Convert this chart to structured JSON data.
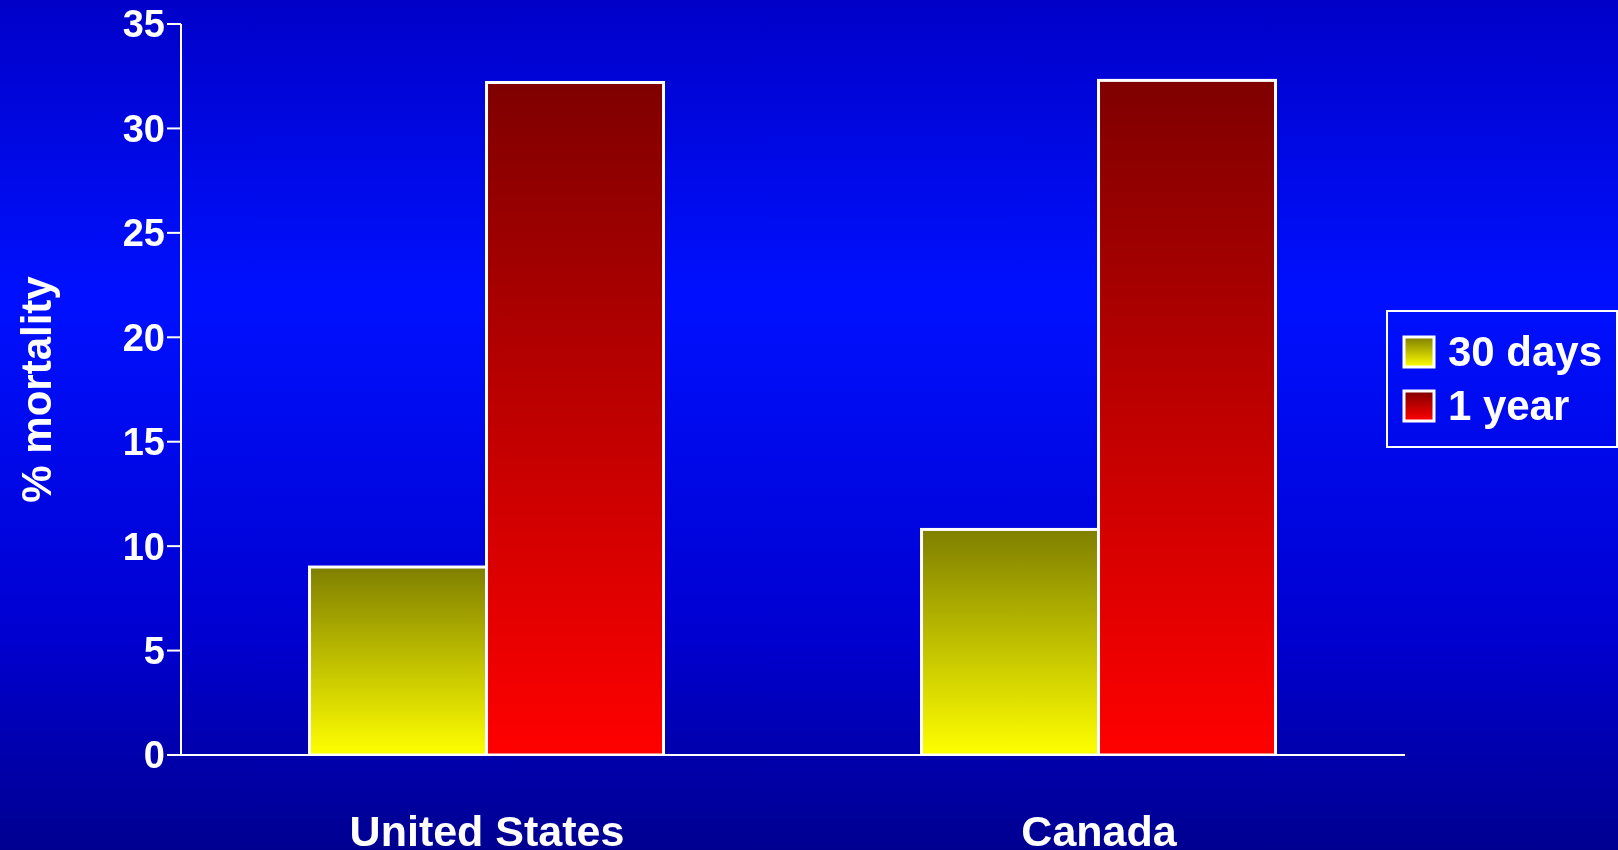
{
  "chart_data": {
    "type": "bar",
    "ylabel": "% mortality",
    "categories": [
      "United States",
      "Canada"
    ],
    "series": [
      {
        "name": "30 days",
        "color": "#ffff00",
        "values": [
          9.0,
          10.8
        ]
      },
      {
        "name": "1 year",
        "color": "#ff0000",
        "values": [
          32.2,
          32.3
        ]
      }
    ],
    "ylim": [
      0,
      35
    ],
    "yticks": [
      0,
      5,
      10,
      15,
      20,
      25,
      30,
      35
    ],
    "legend": "right",
    "grid": false
  }
}
